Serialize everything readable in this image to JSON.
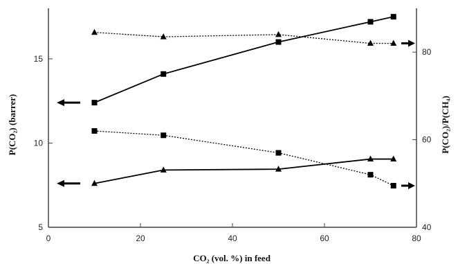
{
  "chart_data": {
    "type": "line",
    "xlabel": "CO₂ (vol. %) in feed",
    "ylabel_left": "P(CO₂) (barrer)",
    "ylabel_right": "P(CO₂)/P(CH₄)",
    "xlim": [
      0,
      80
    ],
    "ylim_left": [
      5,
      18
    ],
    "ylim_right": [
      40,
      90
    ],
    "x_ticks": [
      "0",
      "20",
      "40",
      "60",
      "80"
    ],
    "y_left_ticks": [
      "5",
      "10",
      "15"
    ],
    "y_right_ticks": [
      "40",
      "60",
      "80"
    ],
    "grid": false,
    "legend": "none",
    "series": [
      {
        "axis": "left",
        "marker": "square",
        "style": "solid",
        "x": [
          10,
          25,
          50,
          70,
          75
        ],
        "y": [
          12.4,
          14.1,
          16.0,
          17.2,
          17.5
        ]
      },
      {
        "axis": "left",
        "marker": "triangle",
        "style": "solid",
        "x": [
          10,
          25,
          50,
          70,
          75
        ],
        "y": [
          7.6,
          8.4,
          8.45,
          9.05,
          9.05
        ]
      },
      {
        "axis": "right",
        "marker": "triangle",
        "style": "dotted",
        "x": [
          10,
          25,
          50,
          70,
          75
        ],
        "y": [
          84.5,
          83.5,
          84.0,
          82.0,
          82.0
        ]
      },
      {
        "axis": "right",
        "marker": "square",
        "style": "dotted",
        "x": [
          10,
          25,
          50,
          70,
          75
        ],
        "y": [
          62.0,
          61.0,
          57.0,
          52.0,
          49.5
        ]
      }
    ],
    "annotations": [
      {
        "kind": "axis-arrow",
        "direction": "left",
        "series_index": 0
      },
      {
        "kind": "axis-arrow",
        "direction": "left",
        "series_index": 1
      },
      {
        "kind": "axis-arrow",
        "direction": "right",
        "series_index": 2
      },
      {
        "kind": "axis-arrow",
        "direction": "right",
        "series_index": 3
      }
    ],
    "colors": {
      "line": "#000000",
      "axis": "#444444"
    }
  }
}
